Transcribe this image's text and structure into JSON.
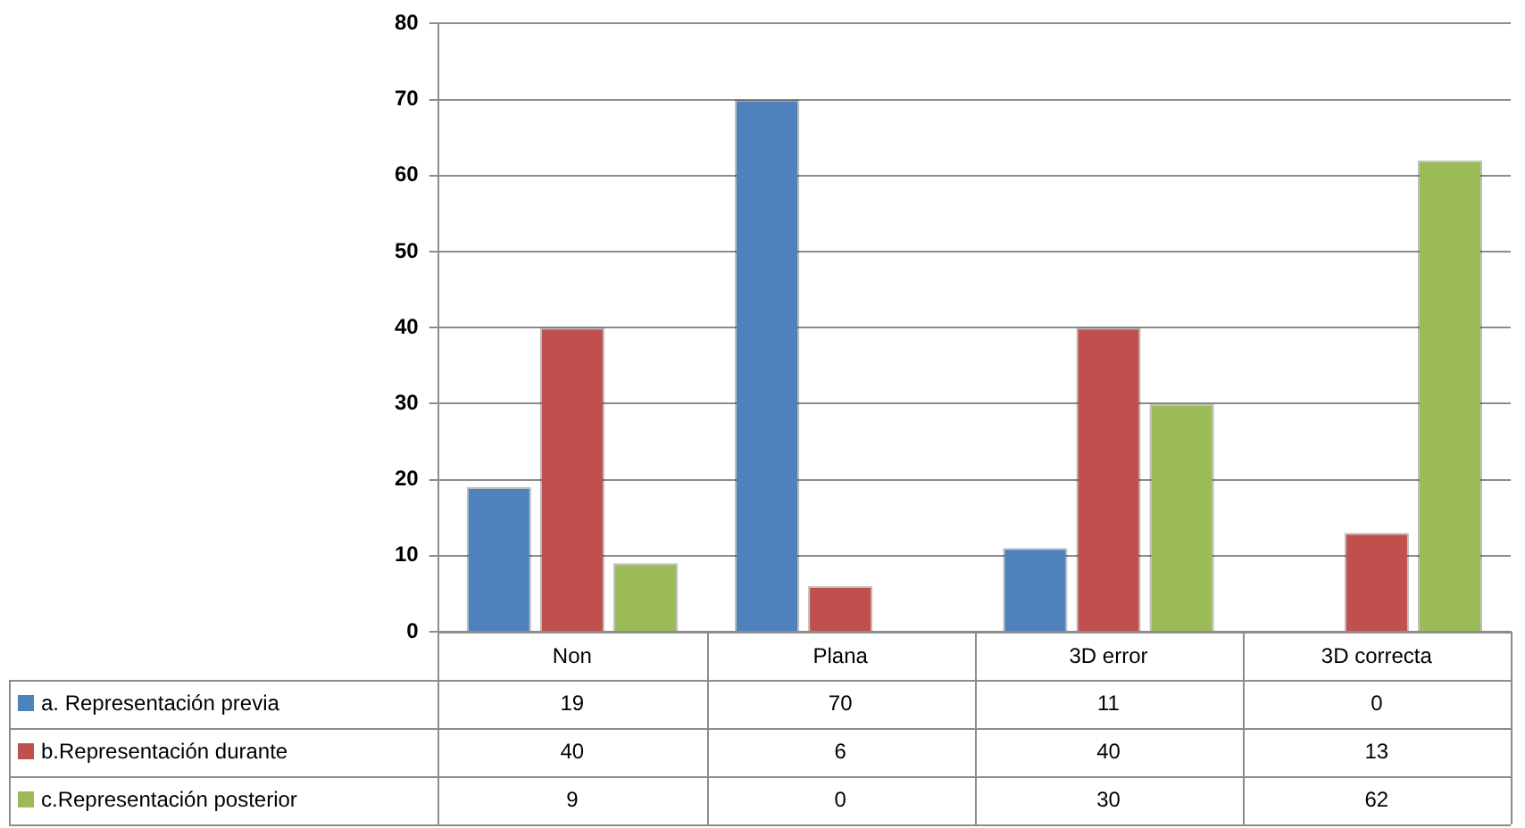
{
  "chart_data": {
    "type": "bar",
    "categories": [
      "Non",
      "Plana",
      "3D error",
      "3D correcta"
    ],
    "series": [
      {
        "name": "a. Representación previa",
        "color": "#4f81bd",
        "values": [
          19,
          70,
          11,
          0
        ]
      },
      {
        "name": "b.Representación durante",
        "color": "#c0504d",
        "values": [
          40,
          6,
          40,
          13
        ]
      },
      {
        "name": "c.Representación posterior",
        "color": "#9bbb59",
        "values": [
          9,
          0,
          30,
          62
        ]
      }
    ],
    "ylim": [
      0,
      80
    ],
    "yticks": [
      0,
      10,
      20,
      30,
      40,
      50,
      60,
      70,
      80
    ],
    "grid": "y",
    "legend": "bottom left",
    "data_labels": true
  }
}
